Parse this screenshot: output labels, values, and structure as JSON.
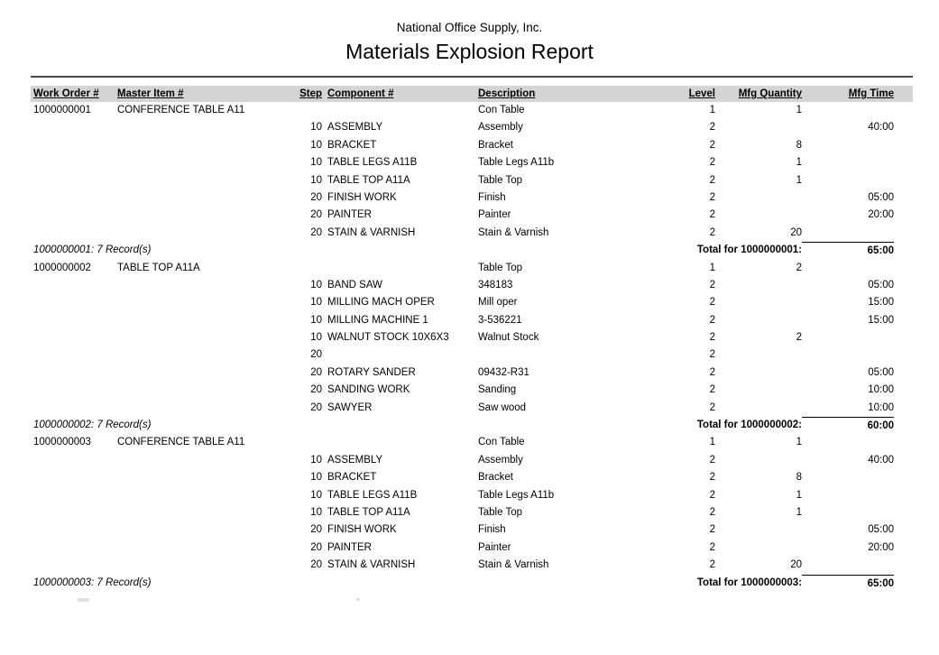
{
  "page": {
    "company": "National Office Supply, Inc.",
    "title": "Materials Explosion Report"
  },
  "columns": {
    "work_order": "Work Order #",
    "master_item": "Master Item #",
    "step": "Step",
    "component": "Component #",
    "description": "Description",
    "level": "Level",
    "mfg_quantity": "Mfg Quantity",
    "mfg_time": "Mfg Time"
  },
  "colors": {
    "header_band": "#d4d4d4",
    "rule": "#4a4a4a",
    "text": "#000000"
  },
  "groups": [
    {
      "work_order": "1000000001",
      "master_item": "CONFERENCE TABLE A11",
      "rows": [
        {
          "step": "",
          "component": "",
          "description": "Con Table",
          "level": "1",
          "mfg_quantity": "1",
          "mfg_time": ""
        },
        {
          "step": "10",
          "component": "ASSEMBLY",
          "description": "Assembly",
          "level": "2",
          "mfg_quantity": "",
          "mfg_time": "40:00"
        },
        {
          "step": "10",
          "component": "BRACKET",
          "description": "Bracket",
          "level": "2",
          "mfg_quantity": "8",
          "mfg_time": ""
        },
        {
          "step": "10",
          "component": "TABLE LEGS A11B",
          "description": "Table Legs A11b",
          "level": "2",
          "mfg_quantity": "1",
          "mfg_time": ""
        },
        {
          "step": "10",
          "component": "TABLE TOP A11A",
          "description": "Table Top",
          "level": "2",
          "mfg_quantity": "1",
          "mfg_time": ""
        },
        {
          "step": "20",
          "component": "FINISH WORK",
          "description": "Finish",
          "level": "2",
          "mfg_quantity": "",
          "mfg_time": "05:00"
        },
        {
          "step": "20",
          "component": "PAINTER",
          "description": "Painter",
          "level": "2",
          "mfg_quantity": "",
          "mfg_time": "20:00"
        },
        {
          "step": "20",
          "component": "STAIN & VARNISH",
          "description": "Stain & Varnish",
          "level": "2",
          "mfg_quantity": "20",
          "mfg_time": ""
        }
      ],
      "record_count": "1000000001: 7 Record(s)",
      "total_label": "Total for 1000000001:",
      "total_time": "65:00"
    },
    {
      "work_order": "1000000002",
      "master_item": "TABLE TOP A11A",
      "rows": [
        {
          "step": "",
          "component": "",
          "description": "Table Top",
          "level": "1",
          "mfg_quantity": "2",
          "mfg_time": ""
        },
        {
          "step": "10",
          "component": "BAND SAW",
          "description": "348183",
          "level": "2",
          "mfg_quantity": "",
          "mfg_time": "05:00"
        },
        {
          "step": "10",
          "component": "MILLING MACH OPER",
          "description": "Mill oper",
          "level": "2",
          "mfg_quantity": "",
          "mfg_time": "15:00"
        },
        {
          "step": "10",
          "component": "MILLING MACHINE 1",
          "description": "3-536221",
          "level": "2",
          "mfg_quantity": "",
          "mfg_time": "15:00"
        },
        {
          "step": "10",
          "component": "WALNUT STOCK 10X6X3",
          "description": "Walnut Stock",
          "level": "2",
          "mfg_quantity": "2",
          "mfg_time": ""
        },
        {
          "step": "20",
          "component": "",
          "description": "",
          "level": "2",
          "mfg_quantity": "",
          "mfg_time": ""
        },
        {
          "step": "20",
          "component": "ROTARY SANDER",
          "description": "09432-R31",
          "level": "2",
          "mfg_quantity": "",
          "mfg_time": "05:00"
        },
        {
          "step": "20",
          "component": "SANDING WORK",
          "description": "Sanding",
          "level": "2",
          "mfg_quantity": "",
          "mfg_time": "10:00"
        },
        {
          "step": "20",
          "component": "SAWYER",
          "description": "Saw wood",
          "level": "2",
          "mfg_quantity": "",
          "mfg_time": "10:00"
        }
      ],
      "record_count": "1000000002: 7 Record(s)",
      "total_label": "Total for 1000000002:",
      "total_time": "60:00"
    },
    {
      "work_order": "1000000003",
      "master_item": "CONFERENCE TABLE A11",
      "rows": [
        {
          "step": "",
          "component": "",
          "description": "Con Table",
          "level": "1",
          "mfg_quantity": "1",
          "mfg_time": ""
        },
        {
          "step": "10",
          "component": "ASSEMBLY",
          "description": "Assembly",
          "level": "2",
          "mfg_quantity": "",
          "mfg_time": "40:00"
        },
        {
          "step": "10",
          "component": "BRACKET",
          "description": "Bracket",
          "level": "2",
          "mfg_quantity": "8",
          "mfg_time": ""
        },
        {
          "step": "10",
          "component": "TABLE LEGS A11B",
          "description": "Table Legs A11b",
          "level": "2",
          "mfg_quantity": "1",
          "mfg_time": ""
        },
        {
          "step": "10",
          "component": "TABLE TOP A11A",
          "description": "Table Top",
          "level": "2",
          "mfg_quantity": "1",
          "mfg_time": ""
        },
        {
          "step": "20",
          "component": "FINISH WORK",
          "description": "Finish",
          "level": "2",
          "mfg_quantity": "",
          "mfg_time": "05:00"
        },
        {
          "step": "20",
          "component": "PAINTER",
          "description": "Painter",
          "level": "2",
          "mfg_quantity": "",
          "mfg_time": "20:00"
        },
        {
          "step": "20",
          "component": "STAIN & VARNISH",
          "description": "Stain & Varnish",
          "level": "2",
          "mfg_quantity": "20",
          "mfg_time": ""
        }
      ],
      "record_count": "1000000003: 7 Record(s)",
      "total_label": "Total for 1000000003:",
      "total_time": "65:00"
    }
  ]
}
